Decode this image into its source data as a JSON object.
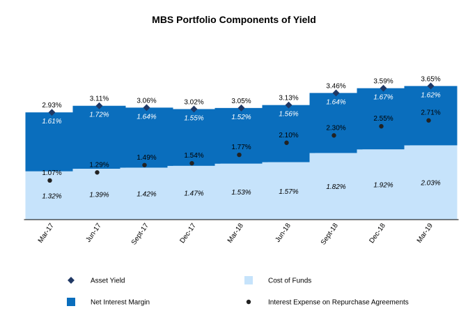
{
  "chart_data": {
    "type": "bar",
    "title": "MBS Portfolio Components of Yield",
    "categories": [
      "Mar-17",
      "Jun-17",
      "Sept-17",
      "Dec-17",
      "Mar-18",
      "Jun-18",
      "Sept-18",
      "Dec-18",
      "Mar-19"
    ],
    "series": [
      {
        "name": "Cost of Funds",
        "kind": "stacked-bar",
        "color": "#c6e3fb",
        "values": [
          1.32,
          1.39,
          1.42,
          1.47,
          1.53,
          1.57,
          1.82,
          1.92,
          2.03
        ],
        "labels": [
          "1.32%",
          "1.39%",
          "1.42%",
          "1.47%",
          "1.53%",
          "1.57%",
          "1.82%",
          "1.92%",
          "2.03%"
        ]
      },
      {
        "name": "Net Interest Margin",
        "kind": "stacked-bar",
        "color": "#0a6ebd",
        "values": [
          1.61,
          1.72,
          1.64,
          1.55,
          1.52,
          1.56,
          1.64,
          1.67,
          1.62
        ],
        "labels": [
          "1.61%",
          "1.72%",
          "1.64%",
          "1.55%",
          "1.52%",
          "1.56%",
          "1.64%",
          "1.67%",
          "1.62%"
        ]
      },
      {
        "name": "Asset Yield",
        "kind": "marker-diamond",
        "color": "#203864",
        "values": [
          2.93,
          3.11,
          3.06,
          3.02,
          3.05,
          3.13,
          3.46,
          3.59,
          3.65
        ],
        "labels": [
          "2.93%",
          "3.11%",
          "3.06%",
          "3.02%",
          "3.05%",
          "3.13%",
          "3.46%",
          "3.59%",
          "3.65%"
        ]
      },
      {
        "name": "Interest Expense on Repurchase Agreements",
        "kind": "marker-dot",
        "color": "#222222",
        "values": [
          1.07,
          1.29,
          1.49,
          1.54,
          1.77,
          2.1,
          2.3,
          2.55,
          2.71
        ],
        "labels": [
          "1.07%",
          "1.29%",
          "1.49%",
          "1.54%",
          "1.77%",
          "2.10%",
          "2.30%",
          "2.55%",
          "2.71%"
        ]
      }
    ],
    "xlabel": "",
    "ylabel": "",
    "ylim": [
      0,
      4.2
    ],
    "grid": false,
    "legend": {
      "position": "bottom",
      "items": [
        "Asset Yield",
        "Cost of Funds",
        "Net Interest Margin",
        "Interest Expense on Repurchase Agreements"
      ]
    }
  }
}
